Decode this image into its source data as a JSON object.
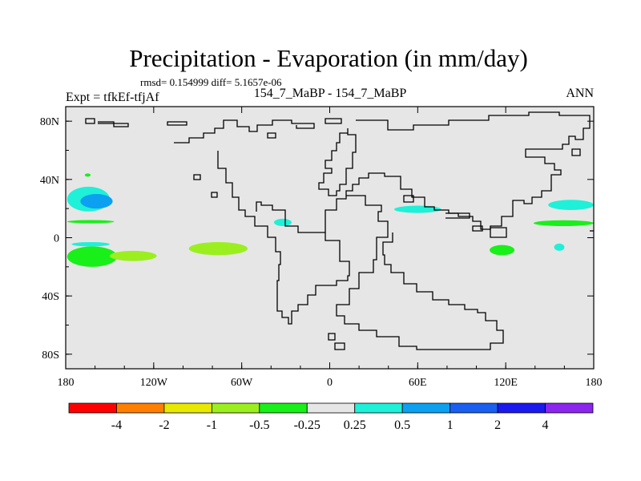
{
  "chart_data": {
    "type": "heatmap",
    "title": "Precipitation - Evaporation (in mm/day)",
    "stats_line": "rmsd= 0.154999  diff= 5.1657e-06",
    "center_subtitle": "154_7_MaBP - 154_7_MaBP",
    "left_subtitle": "Expt = tfkEf-tfjAf",
    "right_subtitle": "ANN",
    "xlim": [
      -180,
      180
    ],
    "ylim": [
      -90,
      90
    ],
    "x_ticks": [
      {
        "value": -180,
        "label": "180"
      },
      {
        "value": -120,
        "label": "120W"
      },
      {
        "value": -60,
        "label": "60W"
      },
      {
        "value": 0,
        "label": "0"
      },
      {
        "value": 60,
        "label": "60E"
      },
      {
        "value": 120,
        "label": "120E"
      },
      {
        "value": 180,
        "label": "180"
      }
    ],
    "y_ticks": [
      {
        "value": 80,
        "label": "80N"
      },
      {
        "value": 40,
        "label": "40N"
      },
      {
        "value": 0,
        "label": "0"
      },
      {
        "value": -40,
        "label": "40S"
      },
      {
        "value": -80,
        "label": "80S"
      }
    ],
    "colorbar": {
      "colors": [
        "#ff0000",
        "#ff7f00",
        "#e8e800",
        "#9bef1f",
        "#19ef19",
        "#e6e6e6",
        "#1ff0d8",
        "#0ca0f0",
        "#1a5ff0",
        "#1a1aee",
        "#8a26ee"
      ],
      "labels": [
        {
          "index": 1,
          "text": "-4"
        },
        {
          "index": 2,
          "text": "-2"
        },
        {
          "index": 3,
          "text": "-1"
        },
        {
          "index": 4,
          "text": "-0.5"
        },
        {
          "index": 5,
          "text": "-0.25"
        },
        {
          "index": 6,
          "text": "0.25"
        },
        {
          "index": 7,
          "text": "0.5"
        },
        {
          "index": 8,
          "text": "1"
        },
        {
          "index": 9,
          "text": "2"
        },
        {
          "index": 10,
          "text": "4"
        }
      ]
    },
    "background_color": "#e6e6e6",
    "regions": [
      {
        "level": "0.25 to 0.5",
        "color": "#1ff0d8",
        "lon": [
          -179,
          -150
        ],
        "lat": [
          18,
          35
        ]
      },
      {
        "level": "0.5 to 1",
        "color": "#0ca0f0",
        "lon": [
          -170,
          -148
        ],
        "lat": [
          20,
          30
        ]
      },
      {
        "level": "-0.5 to -0.25",
        "color": "#19ef19",
        "lon": [
          -179,
          -147
        ],
        "lat": [
          10,
          12
        ]
      },
      {
        "level": "0.25 to 0.5",
        "color": "#1ff0d8",
        "lon": [
          -176,
          -150
        ],
        "lat": [
          -6,
          -3
        ]
      },
      {
        "level": "-0.5 to -0.25",
        "color": "#19ef19",
        "lon": [
          -179,
          -145
        ],
        "lat": [
          -20,
          -6
        ]
      },
      {
        "level": "-1 to -0.5",
        "color": "#9bef1f",
        "lon": [
          -150,
          -118
        ],
        "lat": [
          -16,
          -9
        ]
      },
      {
        "level": "-1 to -0.5",
        "color": "#9bef1f",
        "lon": [
          -96,
          -56
        ],
        "lat": [
          -12,
          -3
        ]
      },
      {
        "level": "-0.5 to -0.25",
        "color": "#19ef19",
        "lon": [
          -167,
          -163
        ],
        "lat": [
          42,
          44
        ]
      },
      {
        "level": "0.25 to 0.5",
        "color": "#1ff0d8",
        "lon": [
          -38,
          -26
        ],
        "lat": [
          8,
          13
        ]
      },
      {
        "level": "0.25 to 0.5",
        "color": "#1ff0d8",
        "lon": [
          44,
          76
        ],
        "lat": [
          17,
          22
        ]
      },
      {
        "level": "-0.5 to -0.25",
        "color": "#19ef19",
        "lon": [
          109,
          126
        ],
        "lat": [
          -12,
          -5
        ]
      },
      {
        "level": "0.25 to 0.5",
        "color": "#1ff0d8",
        "lon": [
          149,
          180
        ],
        "lat": [
          19,
          26
        ]
      },
      {
        "level": "-0.5 to -0.25",
        "color": "#19ef19",
        "lon": [
          139,
          180
        ],
        "lat": [
          8,
          12
        ]
      },
      {
        "level": "0.25 to 0.5",
        "color": "#1ff0d8",
        "lon": [
          153,
          160
        ],
        "lat": [
          -9,
          -4
        ]
      }
    ]
  }
}
